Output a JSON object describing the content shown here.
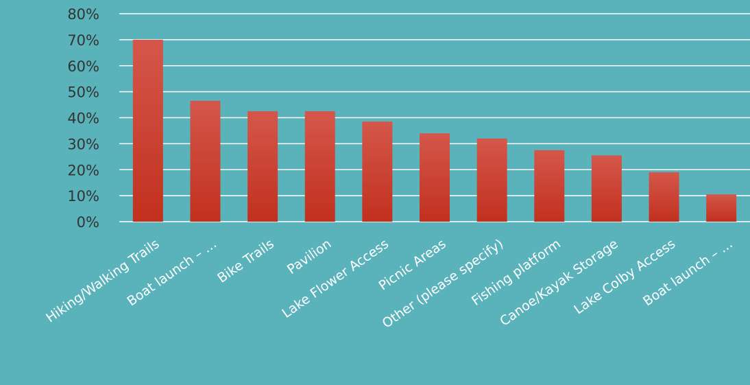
{
  "chart_data": {
    "type": "bar",
    "categories": [
      "Hiking/Walking Trails",
      "Boat launch – …",
      "Bike Trails",
      "Pavilion",
      "Lake Flower Access",
      "Picnic Areas",
      "Other (please specify)",
      "Fishing platform",
      "Canoe/Kayak Storage",
      "Lake Colby Access",
      "Boat launch – …"
    ],
    "values": [
      70,
      46.5,
      42.5,
      42.5,
      38.5,
      34,
      32,
      27.5,
      25.5,
      19,
      10.5
    ],
    "ylim": [
      0,
      80
    ],
    "yticks": [
      "0%",
      "10%",
      "20%",
      "30%",
      "40%",
      "50%",
      "60%",
      "70%",
      "80%"
    ],
    "title": "",
    "xlabel": "",
    "ylabel": "",
    "grid": true,
    "legend": "none",
    "colors": {
      "background": "#5ab3bb",
      "bar_top": "#d4574b",
      "bar_bottom": "#c2301e",
      "gridline": "#ffffff",
      "tick_text": "#333333",
      "category_text": "#ffffff"
    }
  }
}
